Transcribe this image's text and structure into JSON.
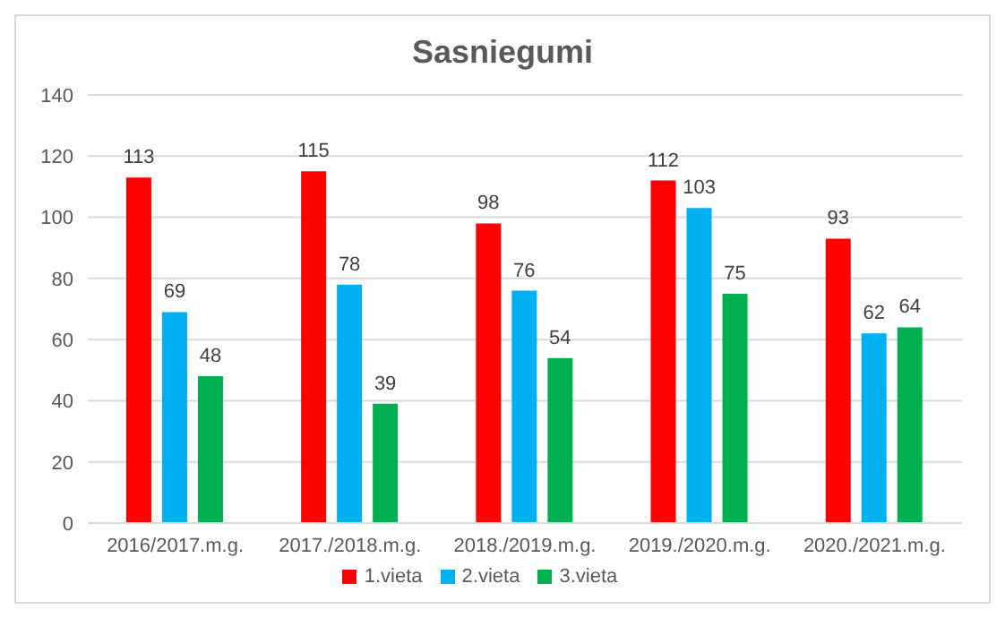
{
  "chart_data": {
    "type": "bar",
    "title": "Sasniegumi",
    "categories": [
      "2016/2017.m.g.",
      "2017./2018.m.g.",
      "2018./2019.m.g.",
      "2019./2020.m.g.",
      "2020./2021.m.g."
    ],
    "series": [
      {
        "name": "1.vieta",
        "color": "#ff0000",
        "values": [
          113,
          115,
          98,
          112,
          93
        ]
      },
      {
        "name": "2.vieta",
        "color": "#00b0f0",
        "values": [
          69,
          78,
          76,
          103,
          62
        ]
      },
      {
        "name": "3.vieta",
        "color": "#00b050",
        "values": [
          48,
          39,
          54,
          75,
          64
        ]
      }
    ],
    "ylim": [
      0,
      140
    ],
    "yticks": [
      0,
      20,
      40,
      60,
      80,
      100,
      120,
      140
    ],
    "grid": "y",
    "legend": "bottom",
    "data_labels": true
  }
}
